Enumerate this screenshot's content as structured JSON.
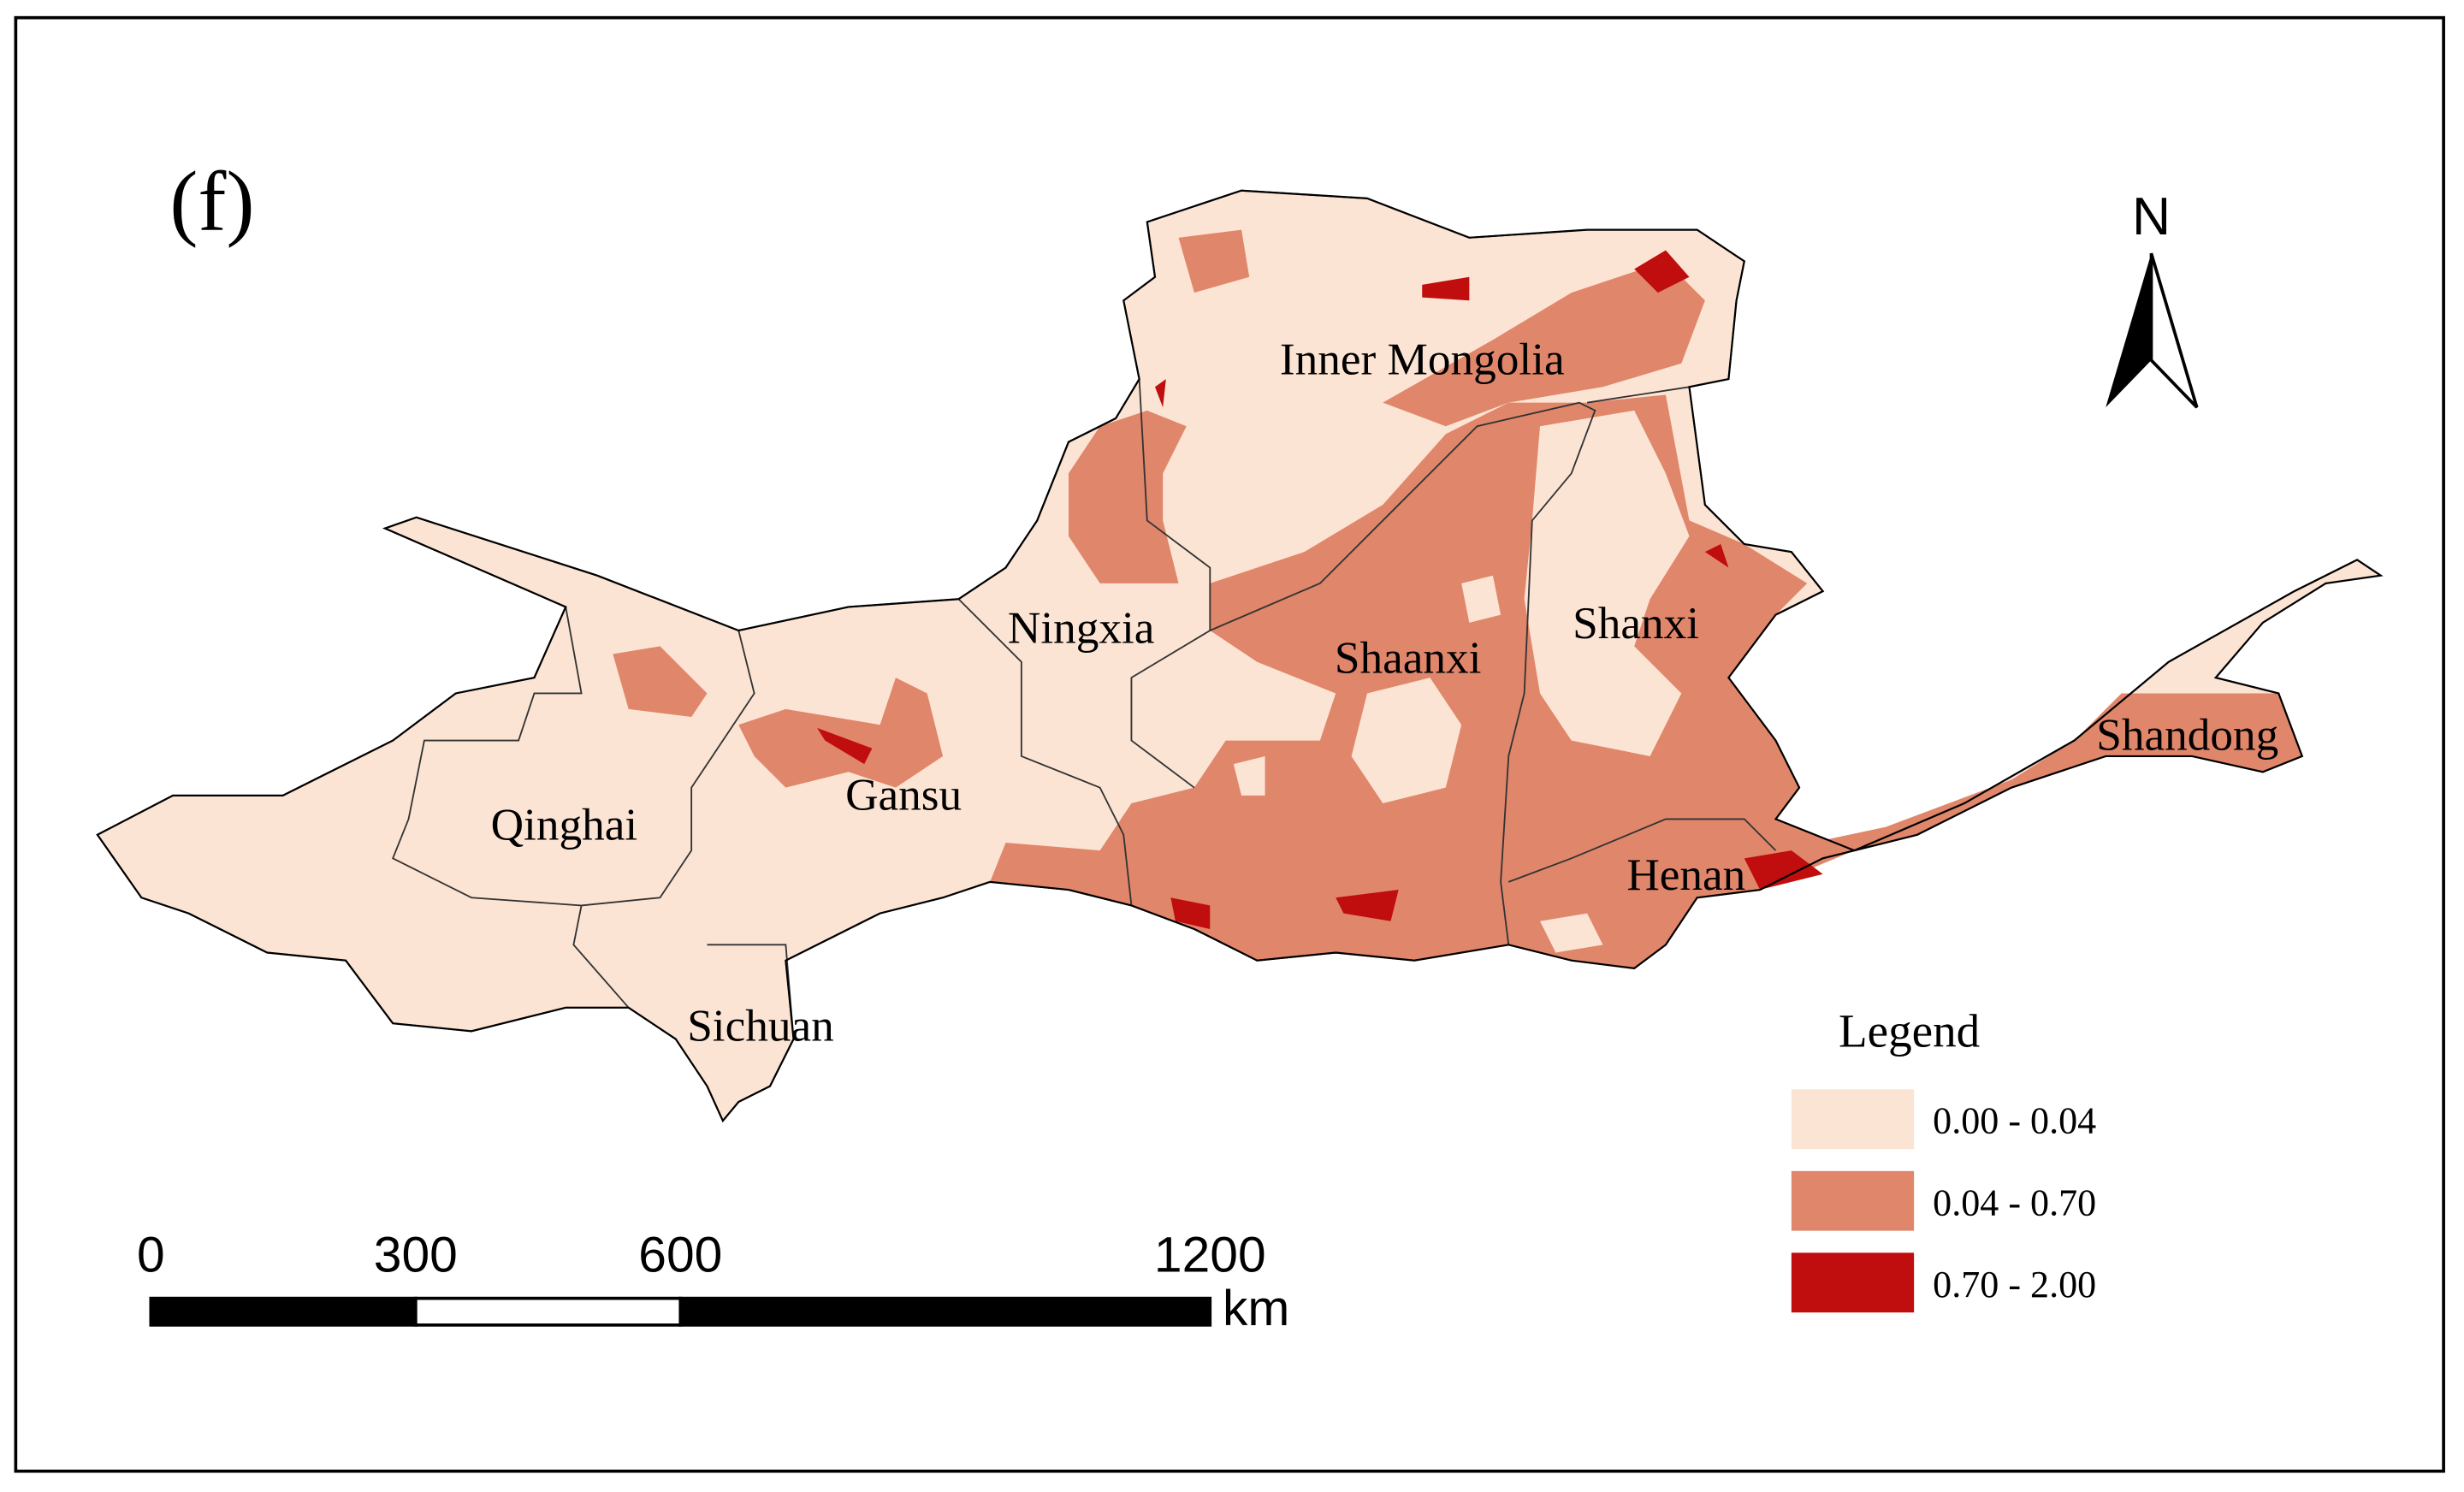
{
  "panel_label": "(f)",
  "north_arrow": "N",
  "regions": [
    "Inner Mongolia",
    "Ningxia",
    "Shaanxi",
    "Shanxi",
    "Shandong",
    "Gansu",
    "Qinghai",
    "Henan",
    "Sichuan"
  ],
  "legend": {
    "title": "Legend",
    "items": [
      {
        "label": "0.00 - 0.04",
        "color": "#fce4d4"
      },
      {
        "label": "0.04 - 0.70",
        "color": "#e0866b"
      },
      {
        "label": "0.70 - 2.00",
        "color": "#c00d0d"
      }
    ]
  },
  "scale_bar": {
    "ticks": [
      0,
      300,
      600,
      1200
    ],
    "unit": "km"
  }
}
